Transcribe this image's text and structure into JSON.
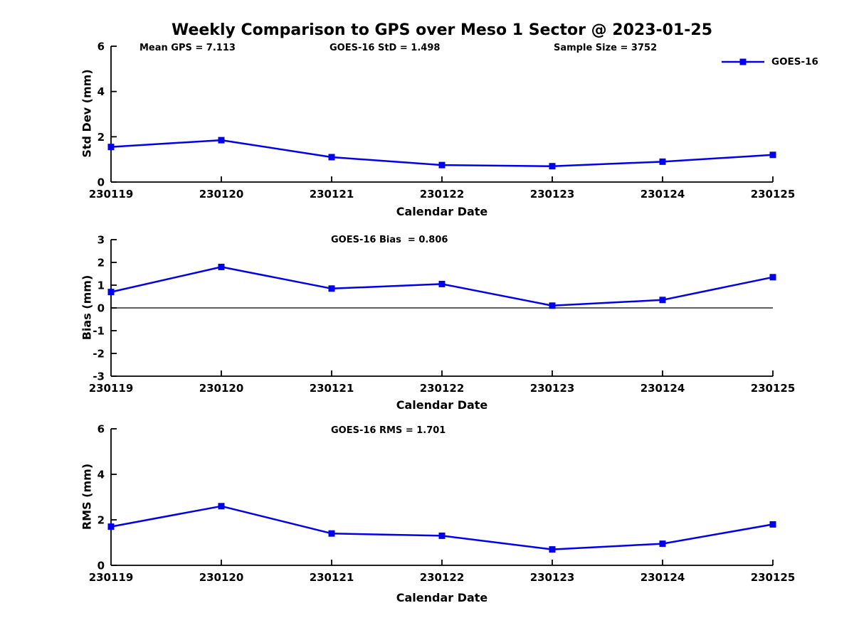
{
  "title": "Weekly Comparison to GPS over Meso 1 Sector @ 2023-01-25",
  "legend": {
    "label": "GOES-16"
  },
  "colors": {
    "line": "#0000ee",
    "axis": "#000000"
  },
  "chart_data": [
    {
      "type": "line",
      "title": "",
      "annotations": [
        "Mean GPS = 7.113",
        "GOES-16 StD = 1.498",
        "Sample Size = 3752"
      ],
      "legend_label": "GOES-16",
      "marker": "square",
      "xlabel": "Calendar Date",
      "ylabel": "Std Dev (mm)",
      "categories": [
        "230119",
        "230120",
        "230121",
        "230122",
        "230123",
        "230124",
        "230125"
      ],
      "values": [
        1.55,
        1.85,
        1.1,
        0.75,
        0.7,
        0.9,
        1.2
      ],
      "ylim": [
        0,
        6
      ],
      "yticks": [
        0,
        2,
        4,
        6
      ],
      "zero_line": false,
      "grid": false,
      "legend_position": "top-right"
    },
    {
      "type": "line",
      "title": "GOES-16 Bias  = 0.806",
      "legend_label": "GOES-16",
      "marker": "square",
      "xlabel": "Calendar Date",
      "ylabel": "Bias (mm)",
      "categories": [
        "230119",
        "230120",
        "230121",
        "230122",
        "230123",
        "230124",
        "230125"
      ],
      "values": [
        0.7,
        1.8,
        0.85,
        1.05,
        0.1,
        0.35,
        1.35
      ],
      "ylim": [
        -3,
        3
      ],
      "yticks": [
        -3,
        -2,
        -1,
        0,
        1,
        2,
        3
      ],
      "zero_line": true,
      "grid": false
    },
    {
      "type": "line",
      "title": "GOES-16 RMS = 1.701",
      "legend_label": "GOES-16",
      "marker": "square",
      "xlabel": "Calendar Date",
      "ylabel": "RMS (mm)",
      "categories": [
        "230119",
        "230120",
        "230121",
        "230122",
        "230123",
        "230124",
        "230125"
      ],
      "values": [
        1.7,
        2.6,
        1.4,
        1.3,
        0.7,
        0.95,
        1.8
      ],
      "ylim": [
        0,
        6
      ],
      "yticks": [
        0,
        2,
        4,
        6
      ],
      "zero_line": false,
      "grid": false
    }
  ]
}
